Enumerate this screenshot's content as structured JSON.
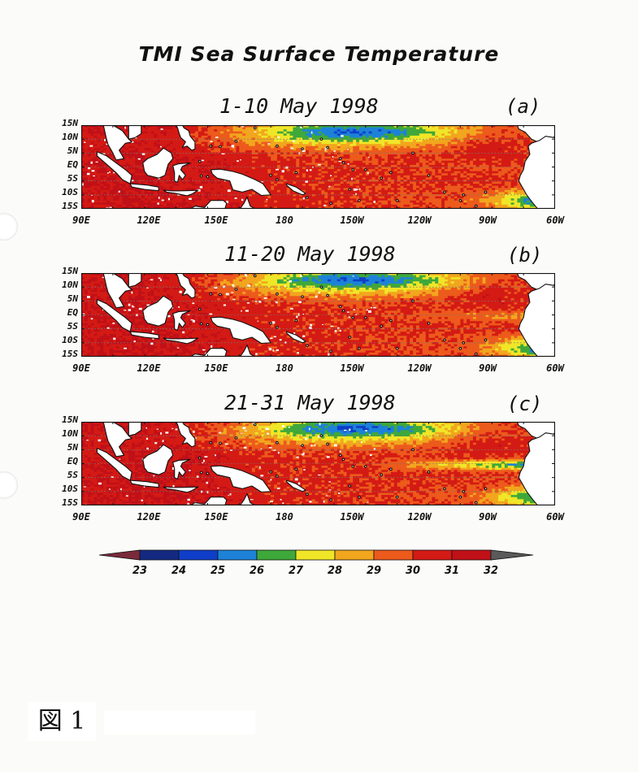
{
  "title": "TMI Sea Surface Temperature",
  "lat_labels": [
    "15N",
    "10N",
    "5N",
    "EQ",
    "5S",
    "10S",
    "15S"
  ],
  "lon_labels": [
    "90E",
    "120E",
    "150E",
    "180",
    "150W",
    "120W",
    "90W",
    "60W"
  ],
  "panels": [
    {
      "title": "1-10 May 1998",
      "letter": "(a)",
      "cold_tongue": 0.15
    },
    {
      "title": "11-20 May 1998",
      "letter": "(b)",
      "cold_tongue": 0.35
    },
    {
      "title": "21-31 May 1998",
      "letter": "(c)",
      "cold_tongue": 1.0
    }
  ],
  "colorbar": {
    "ticks": [
      "23",
      "24",
      "25",
      "26",
      "27",
      "28",
      "29",
      "30",
      "31",
      "32"
    ],
    "colors": [
      "#7a2a3a",
      "#142a80",
      "#0f3ec8",
      "#1d82d8",
      "#3fa83a",
      "#f0e628",
      "#f2a61e",
      "#ec5a1c",
      "#d41a14",
      "#c01018",
      "#5a5a5a"
    ]
  },
  "figure_label": "図 1",
  "map_colors": {
    "land": "#ffffff",
    "coast": "#111111",
    "grid": "#777777"
  }
}
